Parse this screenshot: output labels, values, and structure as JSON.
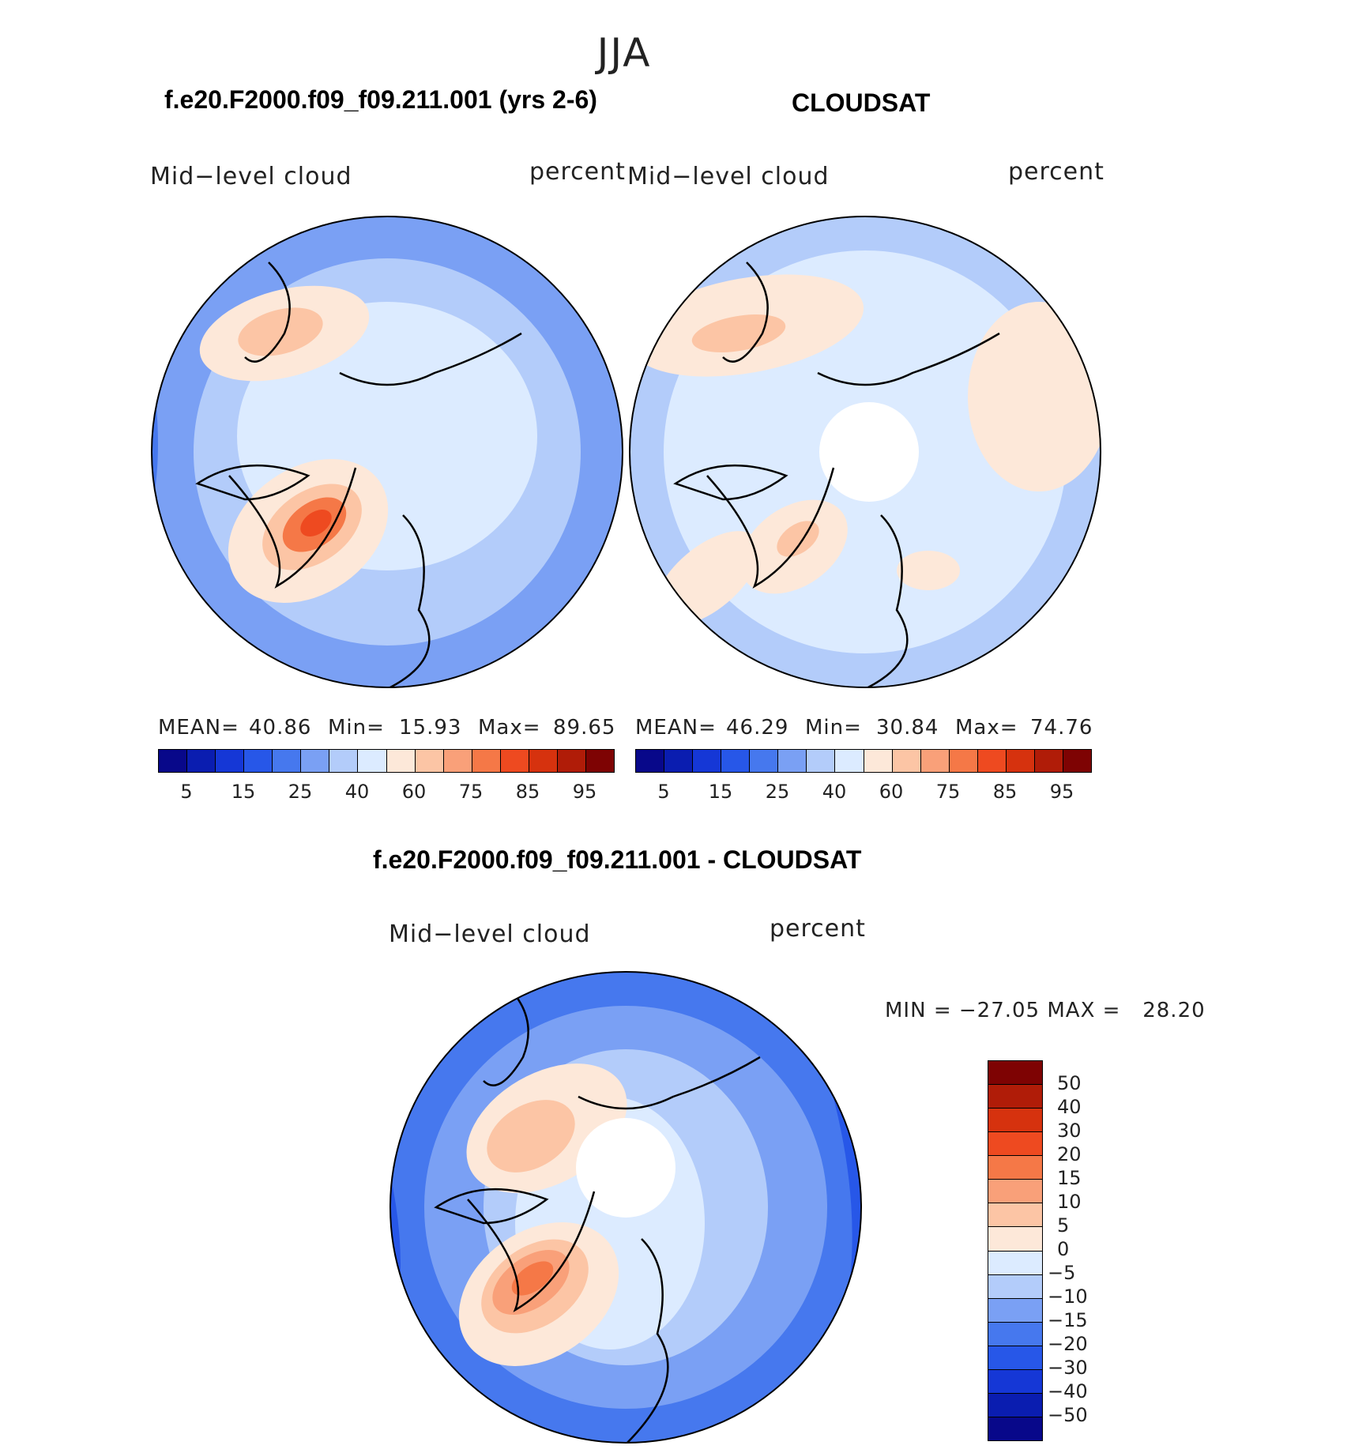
{
  "figure": {
    "season": "JJA",
    "panels": [
      {
        "title": "f.e20.F2000.f09_f09.211.001 (yrs 2-6)",
        "variable": "Mid−level cloud",
        "units": "percent",
        "mean_label": "MEAN=",
        "mean": "40.86",
        "min_label": "Min=",
        "min": "15.93",
        "max_label": "Max=",
        "max": "89.65"
      },
      {
        "title": "CLOUDSAT",
        "variable": "Mid−level cloud",
        "units": "percent",
        "mean_label": "MEAN=",
        "mean": "46.29",
        "min_label": "Min=",
        "min": "30.84",
        "max_label": "Max=",
        "max": "74.76"
      }
    ],
    "diff": {
      "title": "f.e20.F2000.f09_f09.211.001 - CLOUDSAT",
      "variable": "Mid−level cloud",
      "units": "percent",
      "minmax": "MIN = −27.05 MAX =   28.20"
    },
    "colorbar_ticks": [
      "5",
      "15",
      "25",
      "40",
      "60",
      "75",
      "85",
      "95"
    ],
    "diff_ticks": [
      "50",
      "40",
      "30",
      "20",
      "15",
      "10",
      "5",
      "0",
      "−5",
      "−10",
      "−15",
      "−20",
      "−30",
      "−40",
      "−50"
    ]
  },
  "chart_data": [
    {
      "type": "heatmap",
      "title": "f.e20.F2000.f09_f09.211.001 (yrs 2-6)",
      "projection": "north polar stereographic",
      "variable": "Mid-level cloud",
      "units": "percent",
      "mean": 40.86,
      "min": 15.93,
      "max": 89.65,
      "levels": [
        5,
        10,
        15,
        20,
        25,
        30,
        40,
        50,
        60,
        65,
        75,
        80,
        85,
        90,
        95
      ],
      "colors": [
        "#08088a",
        "#0a1db0",
        "#1537d6",
        "#2757e8",
        "#4678ee",
        "#7aa0f4",
        "#b3ccfa",
        "#dcebff",
        "#fde8d9",
        "#fcc5a5",
        "#f9a079",
        "#f57847",
        "#ee4a20",
        "#d6320e",
        "#b01c08",
        "#7e0303"
      ]
    },
    {
      "type": "heatmap",
      "title": "CLOUDSAT",
      "projection": "north polar stereographic",
      "variable": "Mid-level cloud",
      "units": "percent",
      "mean": 46.29,
      "min": 30.84,
      "max": 74.76,
      "levels": [
        5,
        10,
        15,
        20,
        25,
        30,
        40,
        50,
        60,
        65,
        75,
        80,
        85,
        90,
        95
      ],
      "colors": [
        "#08088a",
        "#0a1db0",
        "#1537d6",
        "#2757e8",
        "#4678ee",
        "#7aa0f4",
        "#b3ccfa",
        "#dcebff",
        "#fde8d9",
        "#fcc5a5",
        "#f9a079",
        "#f57847",
        "#ee4a20",
        "#d6320e",
        "#b01c08",
        "#7e0303"
      ]
    },
    {
      "type": "heatmap",
      "title": "f.e20.F2000.f09_f09.211.001 - CLOUDSAT",
      "projection": "north polar stereographic",
      "variable": "Mid-level cloud",
      "units": "percent",
      "min": -27.05,
      "max": 28.2,
      "levels": [
        -50,
        -40,
        -30,
        -20,
        -15,
        -10,
        -5,
        0,
        5,
        10,
        15,
        20,
        30,
        40,
        50
      ],
      "colors": [
        "#08088a",
        "#0a1db0",
        "#1537d6",
        "#2757e8",
        "#4678ee",
        "#7aa0f4",
        "#b3ccfa",
        "#dcebff",
        "#fde8d9",
        "#fcc5a5",
        "#f9a079",
        "#f57847",
        "#ee4a20",
        "#d6320e",
        "#b01c08",
        "#7e0303"
      ]
    }
  ]
}
